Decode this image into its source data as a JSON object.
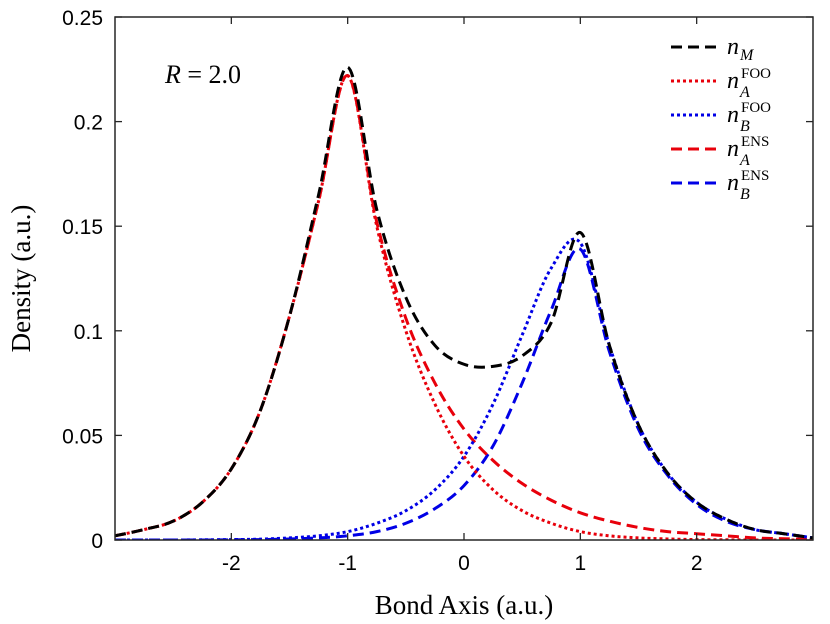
{
  "chart_data": {
    "type": "line",
    "title": "",
    "xlabel": "Bond Axis (a.u.)",
    "ylabel": "Density (a.u.)",
    "xlim": [
      -3,
      3
    ],
    "ylim": [
      0,
      0.25
    ],
    "xticks": [
      -2,
      -1,
      0,
      1,
      2
    ],
    "xtick_labels": [
      "-2",
      "-1",
      "0",
      "1",
      "2"
    ],
    "yticks": [
      0,
      0.05,
      0.1,
      0.15,
      0.2,
      0.25
    ],
    "ytick_labels": [
      "0",
      "0.05",
      "0.1",
      "0.15",
      "0.2",
      "0.25"
    ],
    "annotation": {
      "label": "R = 2.0",
      "var": "R",
      "rest": " = 2.0"
    },
    "x": [
      -3.0,
      -2.75,
      -2.5,
      -2.25,
      -2.0,
      -1.75,
      -1.5,
      -1.25,
      -1.0,
      -0.75,
      -0.5,
      -0.25,
      0.0,
      0.25,
      0.5,
      0.75,
      1.0,
      1.25,
      1.5,
      1.75,
      2.0,
      2.25,
      2.5,
      2.75,
      3.0
    ],
    "series": [
      {
        "name": "n_M",
        "legend": {
          "base": "n",
          "sub": "M",
          "sup": ""
        },
        "color": "#000000",
        "style": "dashed",
        "values": [
          0.002,
          0.005,
          0.009,
          0.018,
          0.034,
          0.062,
          0.107,
          0.165,
          0.226,
          0.158,
          0.116,
          0.093,
          0.084,
          0.083,
          0.088,
          0.104,
          0.147,
          0.093,
          0.055,
          0.032,
          0.018,
          0.01,
          0.005,
          0.003,
          0.001
        ]
      },
      {
        "name": "n_A^FOO",
        "legend": {
          "base": "n",
          "sub": "A",
          "sup": "FOO"
        },
        "color": "#e8000b",
        "style": "dotted",
        "values": [
          0.002,
          0.005,
          0.009,
          0.018,
          0.034,
          0.062,
          0.107,
          0.162,
          0.222,
          0.15,
          0.1,
          0.065,
          0.04,
          0.024,
          0.014,
          0.008,
          0.004,
          0.002,
          0.001,
          0.0005,
          0.0002,
          0.0001,
          0.0,
          0.0,
          0.0
        ]
      },
      {
        "name": "n_B^FOO",
        "legend": {
          "base": "n",
          "sub": "B",
          "sup": "FOO"
        },
        "color": "#0000e6",
        "style": "dotted",
        "values": [
          0.0,
          0.0,
          0.0,
          0.0001,
          0.0002,
          0.0004,
          0.001,
          0.002,
          0.004,
          0.008,
          0.014,
          0.024,
          0.04,
          0.065,
          0.098,
          0.13,
          0.142,
          0.093,
          0.055,
          0.032,
          0.018,
          0.01,
          0.005,
          0.003,
          0.001
        ]
      },
      {
        "name": "n_A^ENS",
        "legend": {
          "base": "n",
          "sub": "A",
          "sup": "ENS"
        },
        "color": "#e8000b",
        "style": "dashed",
        "values": [
          0.002,
          0.005,
          0.009,
          0.018,
          0.034,
          0.062,
          0.107,
          0.162,
          0.222,
          0.152,
          0.106,
          0.075,
          0.053,
          0.038,
          0.027,
          0.019,
          0.013,
          0.009,
          0.006,
          0.004,
          0.003,
          0.002,
          0.001,
          0.0006,
          0.0003
        ]
      },
      {
        "name": "n_B^ENS",
        "legend": {
          "base": "n",
          "sub": "B",
          "sup": "ENS"
        },
        "color": "#0000e6",
        "style": "dashed",
        "values": [
          0.0,
          0.0,
          0.0,
          0.0,
          0.0001,
          0.0002,
          0.0005,
          0.001,
          0.002,
          0.004,
          0.008,
          0.015,
          0.026,
          0.045,
          0.075,
          0.11,
          0.139,
          0.09,
          0.053,
          0.031,
          0.017,
          0.009,
          0.005,
          0.003,
          0.001
        ]
      }
    ],
    "grid": false,
    "legend_position": "top-right"
  }
}
